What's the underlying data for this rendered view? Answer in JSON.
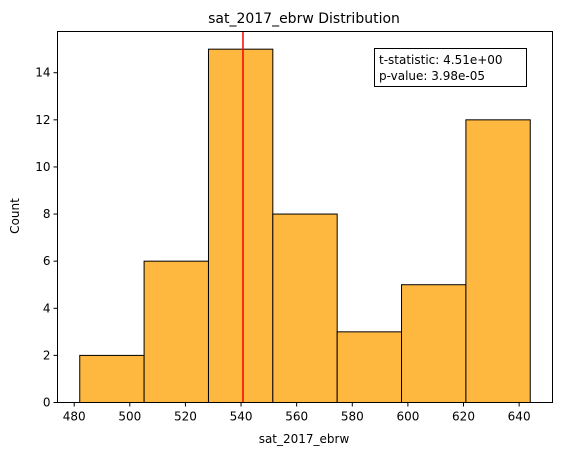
{
  "chart_data": {
    "type": "bar",
    "title": "sat_2017_ebrw Distribution",
    "xlabel": "sat_2017_ebrw",
    "ylabel": "Count",
    "bins": [
      {
        "start": 482.0,
        "end": 505.14,
        "count": 2
      },
      {
        "start": 505.14,
        "end": 528.29,
        "count": 6
      },
      {
        "start": 528.29,
        "end": 551.43,
        "count": 15
      },
      {
        "start": 551.43,
        "end": 574.57,
        "count": 8
      },
      {
        "start": 574.57,
        "end": 597.71,
        "count": 3
      },
      {
        "start": 597.71,
        "end": 620.86,
        "count": 5
      },
      {
        "start": 620.86,
        "end": 644.0,
        "count": 12
      }
    ],
    "xlim": [
      474,
      652
    ],
    "ylim": [
      0,
      15.75
    ],
    "xticks": [
      480,
      500,
      520,
      540,
      560,
      580,
      600,
      620,
      640
    ],
    "yticks": [
      0,
      2,
      4,
      6,
      8,
      10,
      12,
      14
    ],
    "vline": {
      "x": 540.7,
      "color": "#ff0000"
    },
    "bar_color": "#ffb83f",
    "edge_color": "#000000",
    "grid": false,
    "annotation": {
      "lines": [
        "t-statistic:  4.51e+00",
        "p-value:  3.98e-05"
      ],
      "placement": "top-right"
    }
  }
}
